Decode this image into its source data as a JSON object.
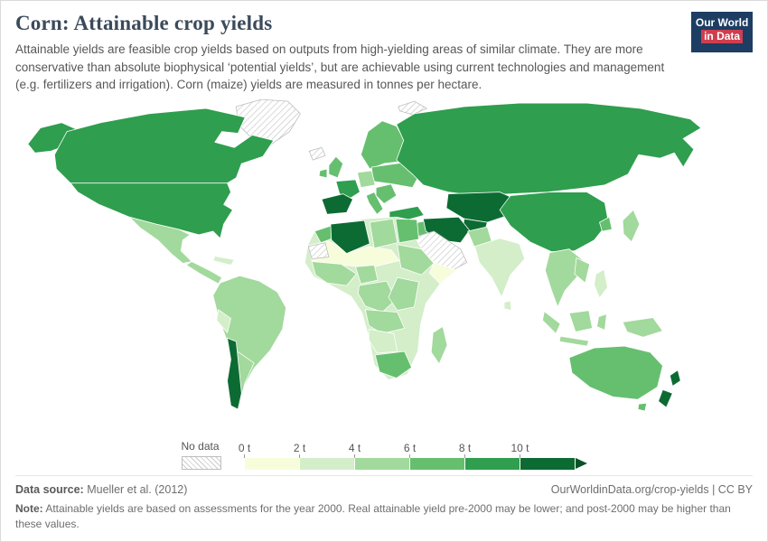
{
  "header": {
    "title": "Corn: Attainable crop yields",
    "subtitle": "Attainable yields are feasible crop yields based on outputs from high-yielding areas of similar climate. They are more conservative than absolute biophysical ‘potential yields’, but are achievable using current technologies and management (e.g. fertilizers and irrigation). Corn (maize) yields are measured in tonnes per hectare."
  },
  "logo": {
    "line1": "Our World",
    "line2": "in Data",
    "bg_color": "#1d3d63",
    "accent_color": "#cf3e4e"
  },
  "legend": {
    "no_data_label": "No data",
    "ticks": [
      "0 t",
      "2 t",
      "4 t",
      "6 t",
      "8 t",
      "10 t"
    ],
    "colors": [
      "#f7fcdb",
      "#d3eec9",
      "#a2d99c",
      "#66bf6f",
      "#2f9e4e",
      "#0c6b33"
    ],
    "arrow_color": "#07522a",
    "no_data_hatch_color": "#cccccc"
  },
  "footer": {
    "data_source_label": "Data source:",
    "data_source_value": "Mueller et al. (2012)",
    "link_text": "OurWorldinData.org/crop-yields | CC BY",
    "note_label": "Note:",
    "note_text": "Attainable yields are based on assessments for the year 2000. Real attainable yield pre-2000 may be lower; and post-2000 may be higher than these values."
  },
  "chart_data": {
    "type": "heatmap",
    "subtype": "choropleth-world-map",
    "title": "Corn: Attainable crop yields",
    "unit": "tonnes per hectare",
    "bin_edges": [
      0,
      2,
      4,
      6,
      8,
      10
    ],
    "bin_labels": [
      "0–2 t",
      "2–4 t",
      "4–6 t",
      "6–8 t",
      "8–10 t",
      "10+ t"
    ],
    "no_data_label": "No data",
    "region_bins": {
      "greenland": "no-data",
      "iceland": "no-data",
      "svalbard": "no-data",
      "saudi-arabia": "no-data",
      "mauritania": "no-data",
      "alaska": 4,
      "canada": 4,
      "usa": 4,
      "mexico": 2,
      "central-america": 2,
      "cuba": 1,
      "south-america": 2,
      "peru": 1,
      "chile": 5,
      "argentina": 2,
      "uk": 3,
      "ireland": 3,
      "scandinavia": 3,
      "iberia": 5,
      "france": 4,
      "central-europe": 2,
      "italy": 3,
      "balkans": 3,
      "eastern-europe": 3,
      "russia": 4,
      "kazakhstan": 5,
      "central-asia": 5,
      "turkey": 4,
      "iraq": 3,
      "iran": 5,
      "africa": 1,
      "sahel": 0,
      "morocco": 3,
      "algeria": 5,
      "libya": 2,
      "egypt": 3,
      "west-africa": 2,
      "nigeria": 2,
      "sudan-ethiopia": 2,
      "somalia": 0,
      "congo": 2,
      "east-africa": 2,
      "angola-zambia": 2,
      "namibia-botswana": 1,
      "south-africa": 3,
      "madagascar": 2,
      "pakistan": 2,
      "india": 1,
      "sri-lanka": 1,
      "china": 4,
      "korea": 3,
      "japan": 2,
      "southeast-asia": 2,
      "vietnam": 2,
      "philippines": 1,
      "sumatra": 2,
      "borneo": 2,
      "java": 2,
      "sulawesi": 2,
      "new-guinea": 2,
      "australia": 3,
      "tasmania": 3,
      "new-zealand-north": 5,
      "new-zealand-south": 5
    }
  }
}
